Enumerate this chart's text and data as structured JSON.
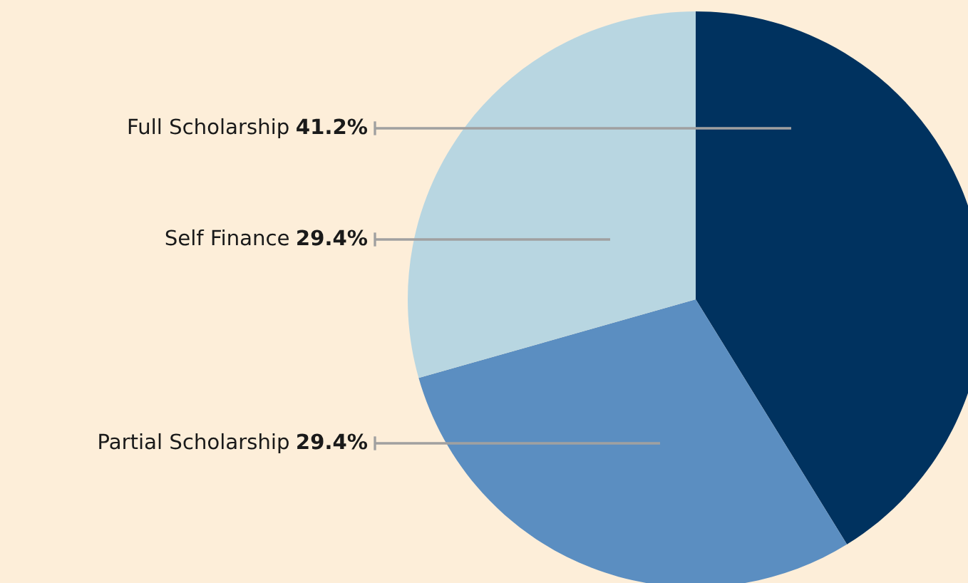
{
  "chart_data": {
    "type": "pie",
    "categories": [
      "Full Scholarship",
      "Partial Scholarship",
      "Self Finance"
    ],
    "values": [
      41.2,
      29.4,
      29.4
    ],
    "colors": [
      "#00325f",
      "#5b8ec1",
      "#b8d6e1"
    ],
    "value_labels": [
      "41.2%",
      "29.4%",
      "29.4%"
    ],
    "legend": false
  }
}
